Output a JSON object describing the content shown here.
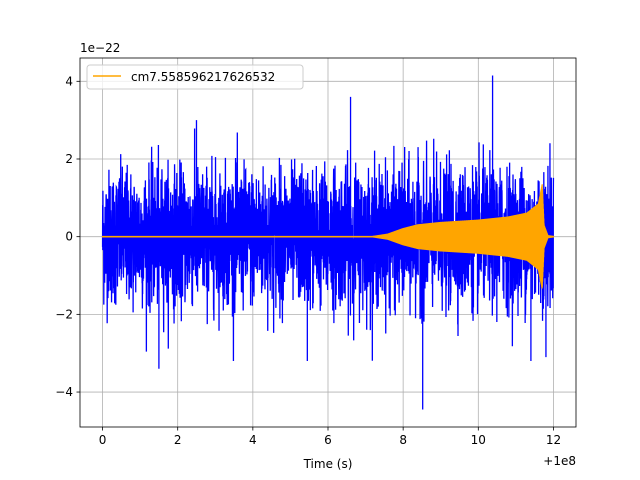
{
  "chart_data": {
    "type": "line",
    "title": "",
    "xlabel": "Time (s)",
    "ylabel": "",
    "x_offset_label": "+1e8",
    "y_scale_label": "1e−22",
    "xlim": [
      -0.6,
      12.6
    ],
    "ylim": [
      -4.9,
      4.6
    ],
    "x_ticks": [
      0,
      2,
      4,
      6,
      8,
      10,
      12
    ],
    "x_tick_labels": [
      "0",
      "2",
      "4",
      "6",
      "8",
      "10",
      "12"
    ],
    "y_ticks": [
      -4,
      -2,
      0,
      2,
      4
    ],
    "y_tick_labels": [
      "−4",
      "−2",
      "0",
      "2",
      "4"
    ],
    "grid": true,
    "legend_position": "top-left",
    "series": [
      {
        "name": "",
        "color": "#0000ff",
        "description_kind": "noise",
        "x_range": [
          0.0,
          12.0
        ],
        "typical_amplitude": 1.0,
        "max_value": 4.15,
        "min_value": -4.45
      },
      {
        "name": "cm7.558596217626532",
        "color": "#ffa500",
        "description_kind": "chirp",
        "envelope": [
          {
            "x": 0.0,
            "amp": 0.02
          },
          {
            "x": 7.2,
            "amp": 0.02
          },
          {
            "x": 7.6,
            "amp": 0.08
          },
          {
            "x": 8.0,
            "amp": 0.22
          },
          {
            "x": 8.4,
            "amp": 0.32
          },
          {
            "x": 9.0,
            "amp": 0.38
          },
          {
            "x": 10.0,
            "amp": 0.44
          },
          {
            "x": 10.8,
            "amp": 0.52
          },
          {
            "x": 11.3,
            "amp": 0.62
          },
          {
            "x": 11.6,
            "amp": 0.85
          },
          {
            "x": 11.7,
            "amp": 1.35
          },
          {
            "x": 11.75,
            "amp": 0.3
          },
          {
            "x": 11.85,
            "amp": 0.04
          },
          {
            "x": 12.0,
            "amp": 0.02
          }
        ]
      }
    ]
  }
}
